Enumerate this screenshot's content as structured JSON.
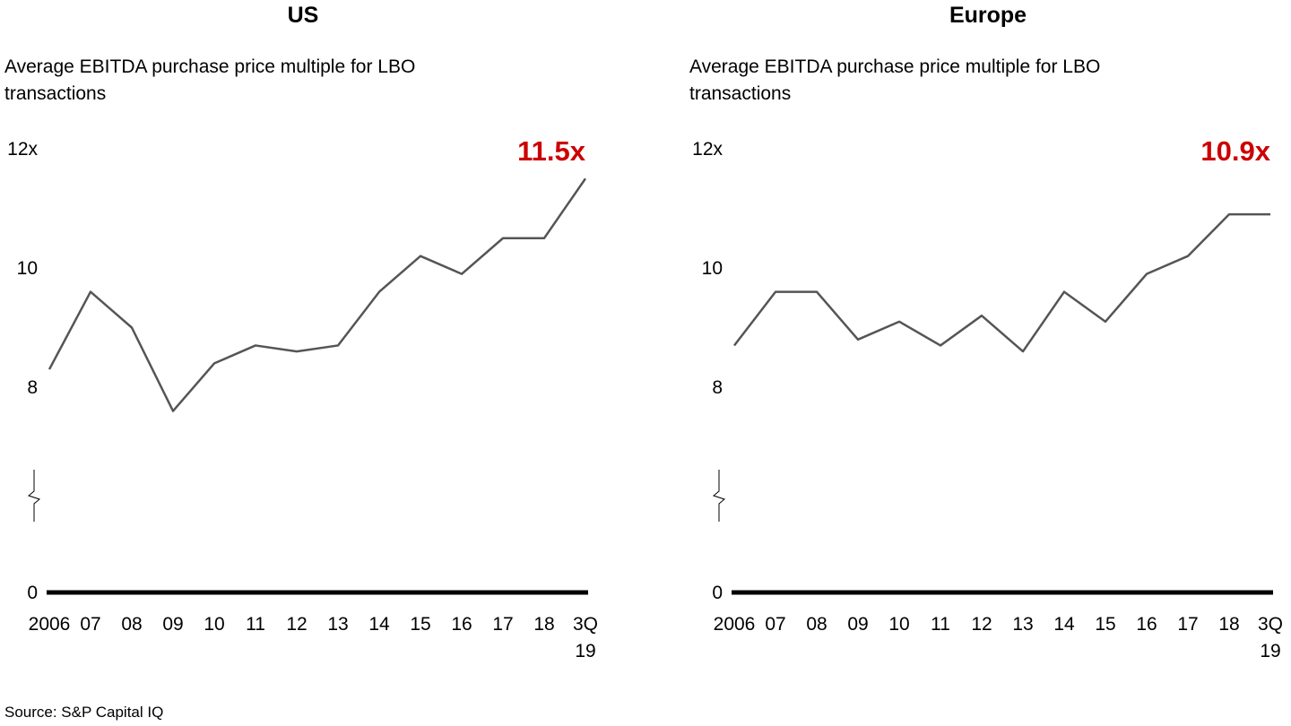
{
  "chart_data": [
    {
      "type": "line",
      "title": "US",
      "subtitle": "Average EBITDA purchase price multiple for LBO transactions",
      "categories": [
        "2006",
        "07",
        "08",
        "09",
        "10",
        "11",
        "12",
        "13",
        "14",
        "15",
        "16",
        "17",
        "18",
        "3Q\n19"
      ],
      "values": [
        8.3,
        9.6,
        9.0,
        7.6,
        8.4,
        8.7,
        8.6,
        8.7,
        9.6,
        10.2,
        9.9,
        10.5,
        10.5,
        11.5
      ],
      "value_labels": [
        null,
        null,
        null,
        null,
        null,
        null,
        null,
        null,
        null,
        null,
        null,
        null,
        null,
        "11.5x"
      ],
      "color": "#555555",
      "ylim": [
        0,
        12
      ],
      "yticks": [
        0,
        8,
        10,
        {
          "value": 12,
          "label": "12x"
        }
      ],
      "axis_break": true
    },
    {
      "type": "line",
      "title": "Europe",
      "subtitle": "Average EBITDA purchase price multiple for LBO transactions",
      "categories": [
        "2006",
        "07",
        "08",
        "09",
        "10",
        "11",
        "12",
        "13",
        "14",
        "15",
        "16",
        "17",
        "18",
        "3Q\n19"
      ],
      "values": [
        8.7,
        9.6,
        9.6,
        8.8,
        9.1,
        8.7,
        9.2,
        8.6,
        9.6,
        9.1,
        9.9,
        10.2,
        10.9,
        10.9
      ],
      "value_labels": [
        null,
        null,
        null,
        null,
        null,
        null,
        null,
        null,
        null,
        null,
        null,
        null,
        null,
        "10.9x"
      ],
      "color": "#555555",
      "ylim": [
        0,
        12
      ],
      "yticks": [
        0,
        8,
        10,
        {
          "value": 12,
          "label": "12x"
        }
      ],
      "axis_break": true
    }
  ],
  "source": "Source: S&P Capital IQ"
}
